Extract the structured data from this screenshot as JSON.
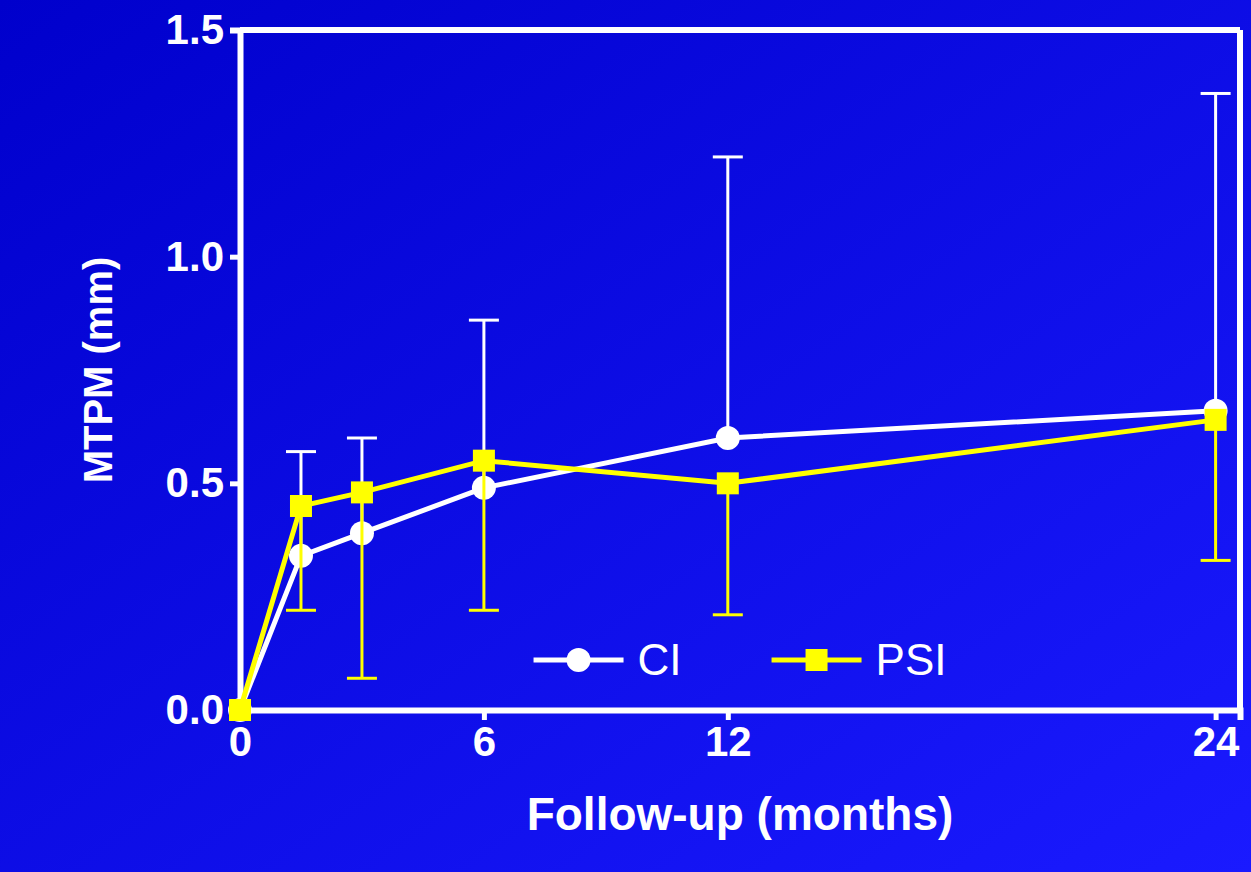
{
  "chart_data": {
    "type": "line",
    "x_label": "Follow-up (months)",
    "y_label": "MTPM (mm)",
    "x": [
      0,
      1.5,
      3,
      6,
      12,
      24
    ],
    "xlim": [
      0,
      24.6
    ],
    "xticks": [
      0,
      6,
      12,
      24
    ],
    "ylim": [
      0,
      1.5
    ],
    "yticks": [
      {
        "value": 0,
        "label": "0.0"
      },
      {
        "value": 0.5,
        "label": "0.5"
      },
      {
        "value": 1.0,
        "label": "1.0"
      },
      {
        "value": 1.5,
        "label": "1.5"
      }
    ],
    "grid": false,
    "legend": "bottom",
    "series": [
      {
        "name": "CI",
        "color": "#ffffff",
        "marker": "circle",
        "values": [
          0,
          0.34,
          0.39,
          0.49,
          0.6,
          0.66
        ],
        "errors": [
          null,
          0.23,
          0.21,
          0.37,
          0.62,
          0.7
        ]
      },
      {
        "name": "PSI",
        "color": "#ffff00",
        "marker": "square",
        "values": [
          0,
          0.45,
          0.48,
          0.55,
          0.5,
          0.64
        ],
        "errors": [
          null,
          0.23,
          0.41,
          0.33,
          0.29,
          0.31
        ]
      }
    ]
  }
}
